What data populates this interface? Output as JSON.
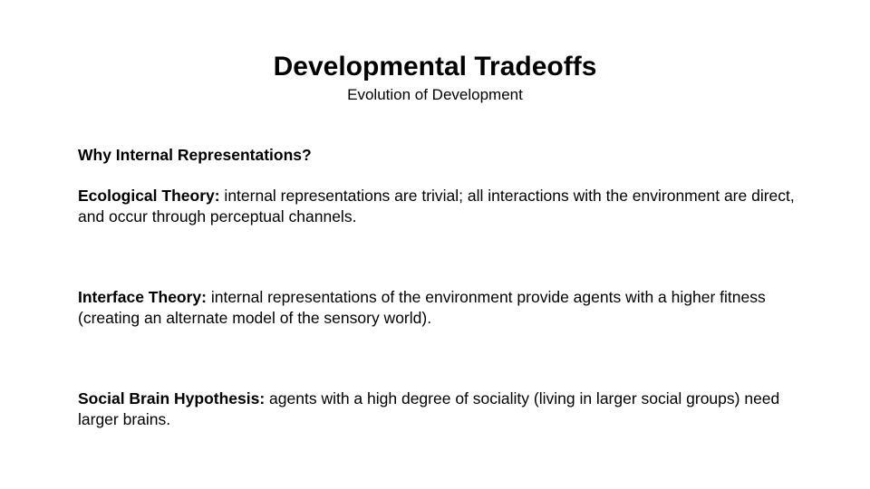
{
  "slide": {
    "title": "Developmental Tradeoffs",
    "subtitle": "Evolution of Development",
    "question": "Why Internal Representations?",
    "theories": [
      {
        "term": "Ecological Theory:",
        "text": " internal representations are trivial; all interactions with the environment are direct, and occur through perceptual channels."
      },
      {
        "term": "Interface Theory:",
        "text": " internal representations of the environment provide agents with a higher fitness (creating an alternate model of the sensory world)."
      },
      {
        "term": "Social Brain Hypothesis:",
        "text": " agents with a high degree of sociality (living in larger social groups) need larger brains."
      }
    ]
  }
}
